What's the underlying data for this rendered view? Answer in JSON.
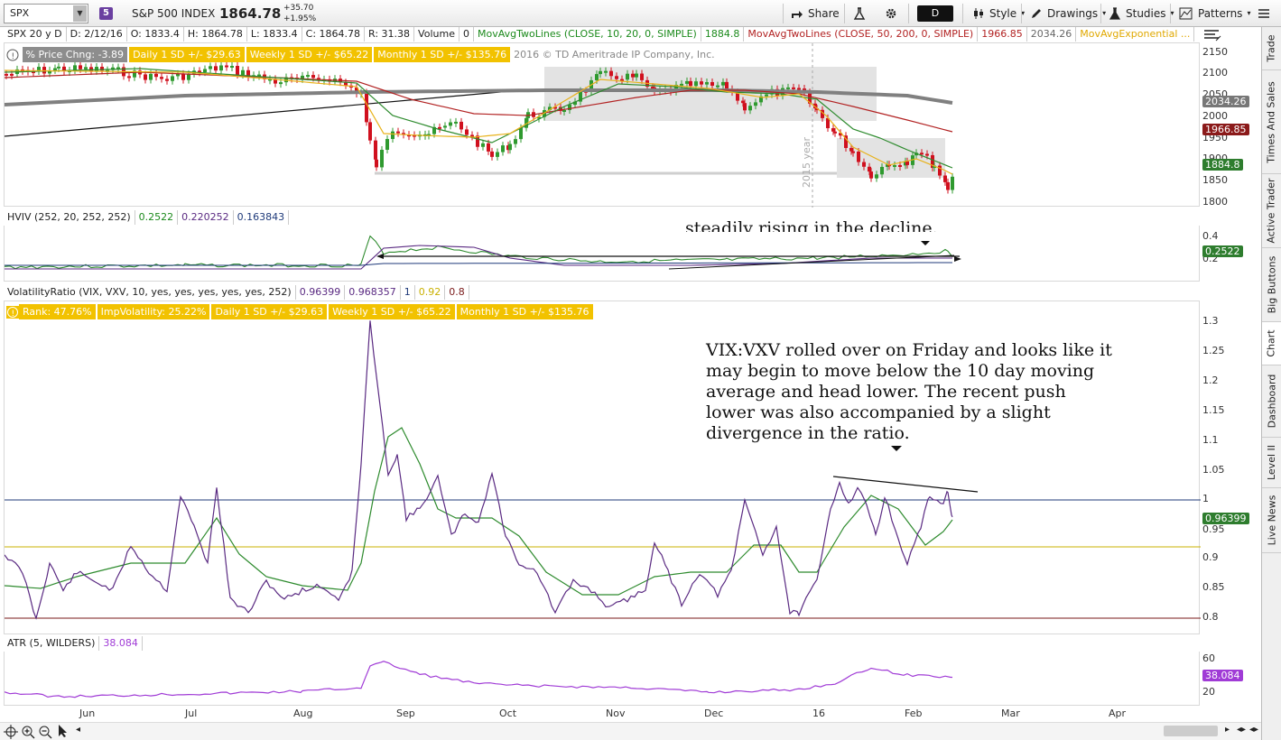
{
  "toolbar": {
    "symbol": "SPX",
    "link_badge": "5",
    "symbol_name": "S&P 500 INDEX",
    "last_price": "1864.78",
    "net_change": "+35.70",
    "pct_change": "+1.95%",
    "share_label": "Share",
    "aggregation": "D",
    "style_label": "Style",
    "drawings_label": "Drawings",
    "studies_label": "Studies",
    "patterns_label": "Patterns"
  },
  "info_bar": {
    "period": "SPX 20 y D",
    "date": "D: 2/12/16",
    "open": "O: 1833.4",
    "high": "H: 1864.78",
    "low": "L: 1833.4",
    "close": "C: 1864.78",
    "range": "R: 31.38",
    "volume_label": "Volume",
    "volume_value": "0",
    "ma1_label": "MovAvgTwoLines (CLOSE, 10, 20, 0, SIMPLE)",
    "ma1_value": "1884.8",
    "ma2_label": "MovAvgTwoLines (CLOSE, 50, 200, 0, SIMPLE)",
    "ma2_value": "1966.85",
    "ma2_value2": "2034.26",
    "ema_label": "MovAvgExponential ..."
  },
  "price_panel": {
    "badges": [
      "% Price Chng: -3.89",
      "Daily 1 SD +/- $29.63",
      "Weekly 1 SD +/- $65.22",
      "Monthly 1 SD +/- $135.76"
    ],
    "copyright": "2016 © TD Ameritrade IP Company, Inc.",
    "year_marker": "2015 year",
    "tags": {
      "ma200": "2034.26",
      "ma50": "1966.85",
      "ma10": "1884.8"
    },
    "y_ticks": [
      "2150",
      "2100",
      "2050",
      "2000",
      "1950",
      "1900",
      "1850",
      "1800"
    ]
  },
  "hviv_panel": {
    "header": "HVIV (252, 20, 252, 252)",
    "values": [
      "0.2522",
      "0.220252",
      "0.163843"
    ],
    "annotation": "steadily rising in the decline.",
    "tag": "0.2522",
    "y_ticks": [
      "0.4",
      "0.2"
    ]
  },
  "ratio_panel": {
    "header": "VolatilityRatio (VIX, VXV, 10, yes, yes, yes, yes, yes, 252)",
    "values": [
      "0.96399",
      "0.968357",
      "1",
      "0.92",
      "0.8"
    ],
    "badges": [
      "Rank: 47.76%",
      "ImpVolatility: 25.22%",
      "Daily 1 SD +/- $29.63",
      "Weekly 1 SD +/- $65.22",
      "Monthly 1 SD +/- $135.76"
    ],
    "annotation": [
      "VIX:VXV rolled over on Friday and looks like it",
      "may begin to move below the 10 day moving",
      "average and head lower.  The recent push",
      "lower was also accompanied by a slight",
      "divergence in the ratio."
    ],
    "tag": "0.96399",
    "y_ticks": [
      "1.3",
      "1.25",
      "1.2",
      "1.15",
      "1.1",
      "1.05",
      "1",
      "0.95",
      "0.9",
      "0.85",
      "0.8"
    ]
  },
  "atr_panel": {
    "header": "ATR (5, WILDERS)",
    "value": "38.084",
    "tag": "38.084",
    "y_ticks": [
      "60",
      "20"
    ]
  },
  "x_axis": [
    "Jun",
    "Jul",
    "Aug",
    "Sep",
    "Oct",
    "Nov",
    "Dec",
    "16",
    "Feb",
    "Mar",
    "Apr"
  ],
  "sidebar_tabs": [
    "Trade",
    "Times And Sales",
    "Active Trader",
    "Big Buttons",
    "Chart",
    "Dashboard",
    "Level II",
    "Live News"
  ],
  "colors": {
    "up": "#2f9a2f",
    "down": "#d0101e",
    "ma10": "#e8b21a",
    "ma20": "#2e8b2e",
    "ma50": "#b22222",
    "ma200": "#808080",
    "ratio": "#5a2a82",
    "atr": "#a03bd6"
  }
}
